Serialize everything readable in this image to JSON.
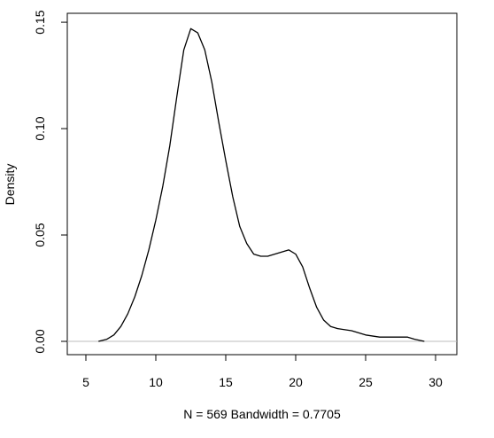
{
  "chart_data": {
    "type": "line",
    "xlabel": "N = 569   Bandwidth = 0.7705",
    "ylabel": "Density",
    "x": [
      5.9,
      6.5,
      7,
      7.5,
      8,
      8.5,
      9,
      9.5,
      10,
      10.5,
      11,
      11.5,
      12,
      12.5,
      13,
      13.5,
      14,
      14.5,
      15,
      15.5,
      16,
      16.5,
      17,
      17.5,
      18,
      18.5,
      19,
      19.5,
      20,
      20.5,
      21,
      21.5,
      22,
      22.5,
      23,
      24,
      25,
      26,
      27,
      27.5,
      28,
      28.5,
      29.2
    ],
    "values": [
      0.0,
      0.001,
      0.003,
      0.007,
      0.013,
      0.021,
      0.031,
      0.043,
      0.057,
      0.073,
      0.092,
      0.115,
      0.137,
      0.147,
      0.145,
      0.137,
      0.122,
      0.103,
      0.085,
      0.068,
      0.054,
      0.046,
      0.041,
      0.04,
      0.04,
      0.041,
      0.042,
      0.043,
      0.041,
      0.035,
      0.025,
      0.016,
      0.01,
      0.007,
      0.006,
      0.005,
      0.003,
      0.002,
      0.002,
      0.002,
      0.002,
      0.001,
      0.0
    ],
    "color": "#000000",
    "xlim": [
      3.67,
      31.52
    ],
    "ylim": [
      -0.00625,
      0.1542
    ],
    "xticks": [
      5,
      10,
      15,
      20,
      25,
      30
    ],
    "yticks": [
      {
        "value": 0,
        "label": "0.00"
      },
      0.05,
      {
        "value": 0.1,
        "label": "0.10"
      },
      0.15
    ]
  }
}
